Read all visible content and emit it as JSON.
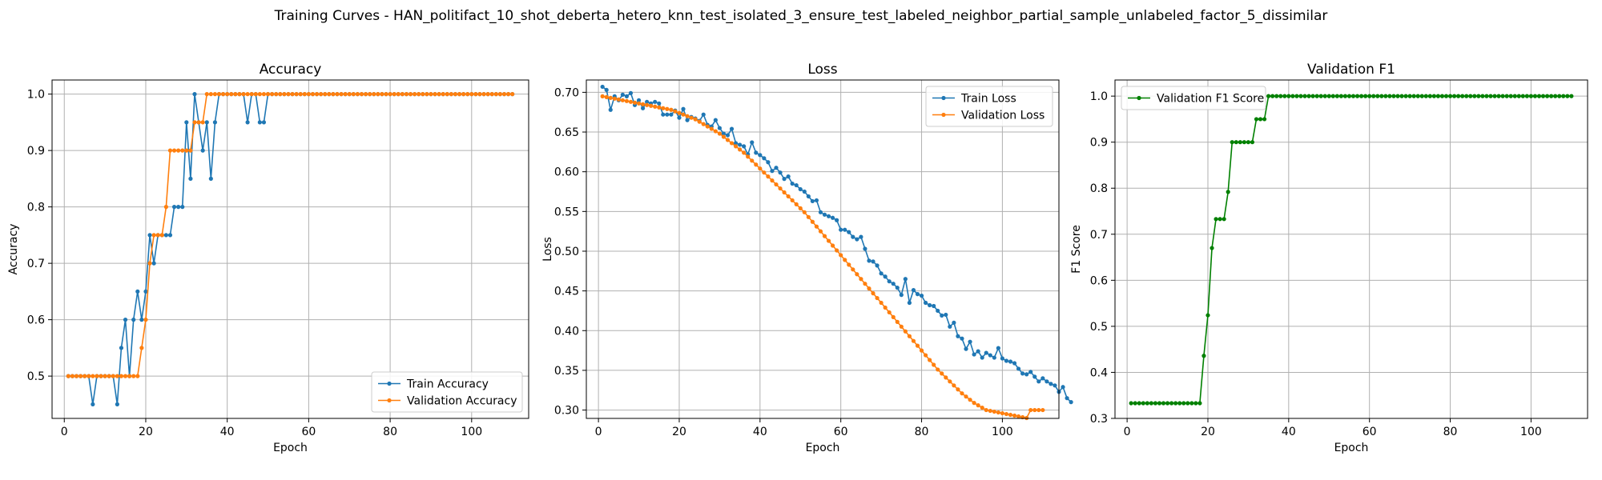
{
  "figure": {
    "title": "Training Curves - HAN_politifact_10_shot_deberta_hetero_knn_test_isolated_3_ensure_test_labeled_neighbor_partial_sample_unlabeled_factor_5_dissimilar"
  },
  "chart_data": [
    {
      "type": "line",
      "title": "Accuracy",
      "xlabel": "Epoch",
      "ylabel": "Accuracy",
      "xlim": [
        -3,
        114
      ],
      "ylim": [
        0.425,
        1.025
      ],
      "xticks": [
        0,
        20,
        40,
        60,
        80,
        100
      ],
      "yticks": [
        0.5,
        0.6,
        0.7,
        0.8,
        0.9,
        1.0
      ],
      "ytick_labels": [
        "0.5",
        "0.6",
        "0.7",
        "0.8",
        "0.9",
        "1.0"
      ],
      "grid": true,
      "legend_position": "lower right",
      "series": [
        {
          "name": "Train Accuracy",
          "color": "#1f77b4",
          "values": [
            0.5,
            0.5,
            0.5,
            0.5,
            0.5,
            0.5,
            0.45,
            0.5,
            0.5,
            0.5,
            0.5,
            0.5,
            0.45,
            0.55,
            0.6,
            0.5,
            0.6,
            0.65,
            0.6,
            0.65,
            0.75,
            0.7,
            0.75,
            0.75,
            0.75,
            0.75,
            0.8,
            0.8,
            0.8,
            0.95,
            0.85,
            1.0,
            0.95,
            0.9,
            0.95,
            0.85,
            0.95,
            1.0,
            1.0,
            1.0,
            1.0,
            1.0,
            1.0,
            1.0,
            0.95,
            1.0,
            1.0,
            0.95,
            0.95,
            1.0,
            1.0,
            1.0,
            1.0,
            1.0,
            1.0,
            1.0,
            1.0,
            1.0,
            1.0,
            1.0,
            1.0,
            1.0,
            1.0,
            1.0,
            1.0,
            1.0,
            1.0,
            1.0,
            1.0,
            1.0,
            1.0,
            1.0,
            1.0,
            1.0,
            1.0,
            1.0,
            1.0,
            1.0,
            1.0,
            1.0,
            1.0,
            1.0,
            1.0,
            1.0,
            1.0,
            1.0,
            1.0,
            1.0,
            1.0,
            1.0,
            1.0,
            1.0,
            1.0,
            1.0,
            1.0,
            1.0,
            1.0,
            1.0,
            1.0,
            1.0,
            1.0,
            1.0,
            1.0,
            1.0,
            1.0,
            1.0,
            1.0,
            1.0,
            1.0,
            1.0
          ]
        },
        {
          "name": "Validation Accuracy",
          "color": "#ff7f0e",
          "values": [
            0.5,
            0.5,
            0.5,
            0.5,
            0.5,
            0.5,
            0.5,
            0.5,
            0.5,
            0.5,
            0.5,
            0.5,
            0.5,
            0.5,
            0.5,
            0.5,
            0.5,
            0.5,
            0.55,
            0.6,
            0.7,
            0.75,
            0.75,
            0.75,
            0.8,
            0.9,
            0.9,
            0.9,
            0.9,
            0.9,
            0.9,
            0.95,
            0.95,
            0.95,
            1.0,
            1.0,
            1.0,
            1.0,
            1.0,
            1.0,
            1.0,
            1.0,
            1.0,
            1.0,
            1.0,
            1.0,
            1.0,
            1.0,
            1.0,
            1.0,
            1.0,
            1.0,
            1.0,
            1.0,
            1.0,
            1.0,
            1.0,
            1.0,
            1.0,
            1.0,
            1.0,
            1.0,
            1.0,
            1.0,
            1.0,
            1.0,
            1.0,
            1.0,
            1.0,
            1.0,
            1.0,
            1.0,
            1.0,
            1.0,
            1.0,
            1.0,
            1.0,
            1.0,
            1.0,
            1.0,
            1.0,
            1.0,
            1.0,
            1.0,
            1.0,
            1.0,
            1.0,
            1.0,
            1.0,
            1.0,
            1.0,
            1.0,
            1.0,
            1.0,
            1.0,
            1.0,
            1.0,
            1.0,
            1.0,
            1.0,
            1.0,
            1.0,
            1.0,
            1.0,
            1.0,
            1.0,
            1.0,
            1.0,
            1.0,
            1.0
          ]
        }
      ]
    },
    {
      "type": "line",
      "title": "Loss",
      "xlabel": "Epoch",
      "ylabel": "Loss",
      "xlim": [
        -3,
        114
      ],
      "ylim": [
        0.2895,
        0.7155
      ],
      "xticks": [
        0,
        20,
        40,
        60,
        80,
        100
      ],
      "yticks": [
        0.3,
        0.35,
        0.4,
        0.45,
        0.5,
        0.55,
        0.6,
        0.65,
        0.7
      ],
      "ytick_labels": [
        "0.30",
        "0.35",
        "0.40",
        "0.45",
        "0.50",
        "0.55",
        "0.60",
        "0.65",
        "0.70"
      ],
      "grid": true,
      "legend_position": "upper right",
      "series": [
        {
          "name": "Train Loss",
          "color": "#1f77b4",
          "values": [
            0.707,
            0.703,
            0.678,
            0.695,
            0.69,
            0.697,
            0.695,
            0.699,
            0.684,
            0.69,
            0.68,
            0.688,
            0.686,
            0.688,
            0.686,
            0.672,
            0.672,
            0.672,
            0.677,
            0.668,
            0.679,
            0.665,
            0.669,
            0.667,
            0.664,
            0.672,
            0.659,
            0.657,
            0.665,
            0.655,
            0.648,
            0.646,
            0.654,
            0.636,
            0.634,
            0.632,
            0.622,
            0.637,
            0.624,
            0.621,
            0.617,
            0.612,
            0.601,
            0.605,
            0.599,
            0.591,
            0.594,
            0.585,
            0.583,
            0.578,
            0.575,
            0.569,
            0.563,
            0.564,
            0.549,
            0.546,
            0.544,
            0.542,
            0.539,
            0.527,
            0.527,
            0.524,
            0.518,
            0.515,
            0.518,
            0.503,
            0.488,
            0.487,
            0.482,
            0.472,
            0.468,
            0.462,
            0.459,
            0.454,
            0.445,
            0.465,
            0.435,
            0.451,
            0.446,
            0.444,
            0.435,
            0.432,
            0.431,
            0.425,
            0.419,
            0.42,
            0.405,
            0.41,
            0.393,
            0.39,
            0.377,
            0.386,
            0.37,
            0.374,
            0.366,
            0.372,
            0.369,
            0.366,
            0.378,
            0.365,
            0.362,
            0.361,
            0.359,
            0.352,
            0.346,
            0.345,
            0.348,
            0.342,
            0.336,
            0.34,
            0.336,
            0.333,
            0.331,
            0.323,
            0.329,
            0.315,
            0.31
          ]
        },
        {
          "name": "Validation Loss",
          "color": "#ff7f0e",
          "values": [
            0.695,
            0.694,
            0.693,
            0.692,
            0.691,
            0.69,
            0.689,
            0.688,
            0.687,
            0.686,
            0.685,
            0.684,
            0.683,
            0.682,
            0.681,
            0.68,
            0.679,
            0.678,
            0.676,
            0.674,
            0.672,
            0.67,
            0.668,
            0.666,
            0.663,
            0.66,
            0.657,
            0.654,
            0.651,
            0.648,
            0.644,
            0.64,
            0.636,
            0.632,
            0.628,
            0.624,
            0.619,
            0.614,
            0.609,
            0.604,
            0.599,
            0.594,
            0.589,
            0.584,
            0.579,
            0.574,
            0.569,
            0.564,
            0.559,
            0.554,
            0.549,
            0.543,
            0.537,
            0.531,
            0.525,
            0.519,
            0.513,
            0.507,
            0.501,
            0.495,
            0.489,
            0.483,
            0.477,
            0.471,
            0.465,
            0.459,
            0.453,
            0.447,
            0.441,
            0.435,
            0.429,
            0.423,
            0.417,
            0.411,
            0.405,
            0.399,
            0.393,
            0.387,
            0.381,
            0.375,
            0.369,
            0.363,
            0.357,
            0.351,
            0.346,
            0.341,
            0.336,
            0.331,
            0.326,
            0.321,
            0.317,
            0.313,
            0.309,
            0.306,
            0.303,
            0.3,
            0.299,
            0.298,
            0.297,
            0.296,
            0.295,
            0.294,
            0.293,
            0.292,
            0.291,
            0.29,
            0.3,
            0.3,
            0.3,
            0.3
          ]
        }
      ]
    },
    {
      "type": "line",
      "title": "Validation F1",
      "xlabel": "Epoch",
      "ylabel": "F1 Score",
      "xlim": [
        -3,
        114
      ],
      "ylim": [
        0.3,
        1.035
      ],
      "xticks": [
        0,
        20,
        40,
        60,
        80,
        100
      ],
      "yticks": [
        0.3,
        0.4,
        0.5,
        0.6,
        0.7,
        0.8,
        0.9,
        1.0
      ],
      "ytick_labels": [
        "0.3",
        "0.4",
        "0.5",
        "0.6",
        "0.7",
        "0.8",
        "0.9",
        "1.0"
      ],
      "grid": true,
      "legend_position": "upper left",
      "series": [
        {
          "name": "Validation F1 Score",
          "color": "#008000",
          "values": [
            0.333,
            0.333,
            0.333,
            0.333,
            0.333,
            0.333,
            0.333,
            0.333,
            0.333,
            0.333,
            0.333,
            0.333,
            0.333,
            0.333,
            0.333,
            0.333,
            0.333,
            0.333,
            0.436,
            0.524,
            0.67,
            0.733,
            0.733,
            0.733,
            0.792,
            0.9,
            0.9,
            0.9,
            0.9,
            0.9,
            0.9,
            0.95,
            0.95,
            0.95,
            1.0,
            1.0,
            1.0,
            1.0,
            1.0,
            1.0,
            1.0,
            1.0,
            1.0,
            1.0,
            1.0,
            1.0,
            1.0,
            1.0,
            1.0,
            1.0,
            1.0,
            1.0,
            1.0,
            1.0,
            1.0,
            1.0,
            1.0,
            1.0,
            1.0,
            1.0,
            1.0,
            1.0,
            1.0,
            1.0,
            1.0,
            1.0,
            1.0,
            1.0,
            1.0,
            1.0,
            1.0,
            1.0,
            1.0,
            1.0,
            1.0,
            1.0,
            1.0,
            1.0,
            1.0,
            1.0,
            1.0,
            1.0,
            1.0,
            1.0,
            1.0,
            1.0,
            1.0,
            1.0,
            1.0,
            1.0,
            1.0,
            1.0,
            1.0,
            1.0,
            1.0,
            1.0,
            1.0,
            1.0,
            1.0,
            1.0,
            1.0,
            1.0,
            1.0,
            1.0,
            1.0,
            1.0,
            1.0,
            1.0,
            1.0,
            1.0
          ]
        }
      ]
    }
  ]
}
